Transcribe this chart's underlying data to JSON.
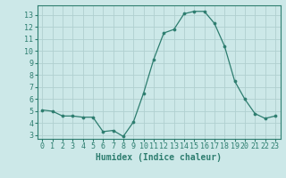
{
  "x": [
    0,
    1,
    2,
    3,
    4,
    5,
    6,
    7,
    8,
    9,
    10,
    11,
    12,
    13,
    14,
    15,
    16,
    17,
    18,
    19,
    20,
    21,
    22,
    23
  ],
  "y": [
    5.1,
    5.0,
    4.6,
    4.6,
    4.5,
    4.5,
    3.3,
    3.4,
    2.9,
    4.1,
    6.5,
    9.3,
    11.5,
    11.8,
    13.1,
    13.3,
    13.3,
    12.3,
    10.4,
    7.5,
    6.0,
    4.8,
    4.4,
    4.6
  ],
  "xlabel": "Humidex (Indice chaleur)",
  "ylim": [
    2.7,
    13.8
  ],
  "xlim": [
    -0.5,
    23.5
  ],
  "yticks": [
    3,
    4,
    5,
    6,
    7,
    8,
    9,
    10,
    11,
    12,
    13
  ],
  "xticks": [
    0,
    1,
    2,
    3,
    4,
    5,
    6,
    7,
    8,
    9,
    10,
    11,
    12,
    13,
    14,
    15,
    16,
    17,
    18,
    19,
    20,
    21,
    22,
    23
  ],
  "line_color": "#2d7d6f",
  "marker": "o",
  "marker_size": 2.2,
  "bg_color": "#cce8e8",
  "plot_bg_color": "#cce8e8",
  "grid_color": "#b0d0d0",
  "tick_color": "#2d7d6f",
  "label_color": "#2d7d6f",
  "xlabel_fontsize": 7,
  "tick_fontsize": 6
}
